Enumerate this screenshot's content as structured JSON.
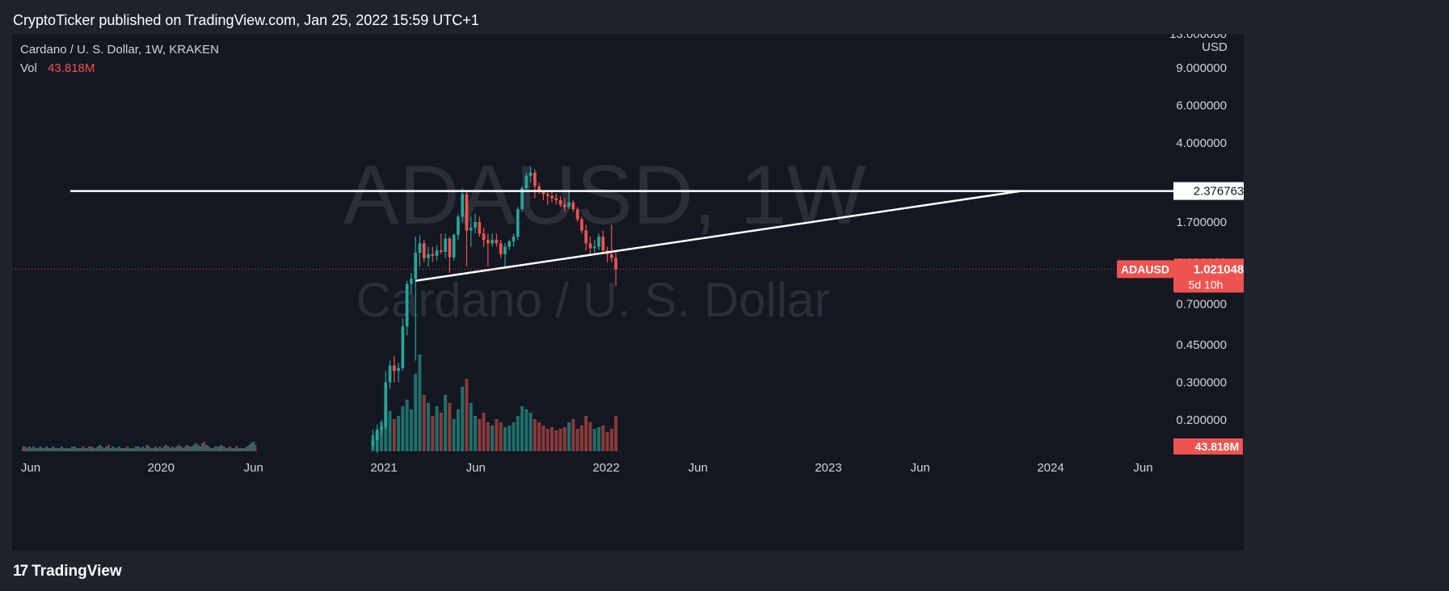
{
  "header": {
    "publisher": "CryptoTicker published on TradingView.com, Jan 25, 2022 15:59 UTC+1"
  },
  "footer": {
    "logo_text": "TradingView",
    "logo_mark": "17"
  },
  "legend": {
    "title": "Cardano / U. S. Dollar, 1W, KRAKEN",
    "vol_label": "Vol",
    "vol_value": "43.818M"
  },
  "watermark": {
    "symbol": "ADAUSD, 1W",
    "name": "Cardano / U. S. Dollar"
  },
  "colors": {
    "up": "#26a69a",
    "down": "#ef5350",
    "vol_up": "#1f6f6a",
    "vol_down": "#8a3a3a",
    "background": "#131722",
    "line": "#ffffff"
  },
  "chart_data": {
    "type": "candlestick",
    "symbol": "ADAUSD",
    "interval": "1W",
    "exchange": "KRAKEN",
    "y_scale": "log",
    "currency": "USD",
    "y_ticks": [
      {
        "value": 13.0,
        "label": "13.000000"
      },
      {
        "value": 9.0,
        "label": "9.000000"
      },
      {
        "value": 6.0,
        "label": "6.000000"
      },
      {
        "value": 4.0,
        "label": "4.000000"
      },
      {
        "value": 1.7,
        "label": "1.700000"
      },
      {
        "value": 1.1,
        "label": "1.100000"
      },
      {
        "value": 0.7,
        "label": "0.700000"
      },
      {
        "value": 0.45,
        "label": "0.450000"
      },
      {
        "value": 0.3,
        "label": "0.300000"
      },
      {
        "value": 0.2,
        "label": "0.200000"
      }
    ],
    "x_ticks": [
      {
        "date": "2019-06-01",
        "label": "Jun"
      },
      {
        "date": "2020-01-01",
        "label": "2020"
      },
      {
        "date": "2020-06-01",
        "label": "Jun"
      },
      {
        "date": "2021-01-01",
        "label": "2021"
      },
      {
        "date": "2021-06-01",
        "label": "Jun"
      },
      {
        "date": "2022-01-01",
        "label": "2022"
      },
      {
        "date": "2022-06-01",
        "label": "Jun"
      },
      {
        "date": "2023-01-01",
        "label": "2023"
      },
      {
        "date": "2023-06-01",
        "label": "Jun"
      },
      {
        "date": "2024-01-01",
        "label": "2024"
      },
      {
        "date": "2024-06-01",
        "label": "Jun"
      }
    ],
    "last_price": {
      "symbol_label": "ADAUSD",
      "value": 1.021048,
      "label": "1.021048",
      "countdown": "5d 10h"
    },
    "volume_label": "43.818M",
    "horizontal_line": {
      "value": 2.376763,
      "label": "2.376763",
      "start": "2019-08-05",
      "end": "2024-06-30"
    },
    "trend_line": {
      "start": {
        "date": "2021-02-22",
        "value": 0.9
      },
      "end": {
        "date": "2023-11-13",
        "value": 2.376
      }
    },
    "candles": [
      {
        "date": "2020-12-14",
        "o": 0.15,
        "h": 0.18,
        "l": 0.145,
        "c": 0.16
      },
      {
        "date": "2020-12-21",
        "o": 0.16,
        "h": 0.19,
        "l": 0.14,
        "c": 0.18
      },
      {
        "date": "2020-12-28",
        "o": 0.18,
        "h": 0.2,
        "l": 0.17,
        "c": 0.185
      },
      {
        "date": "2021-01-04",
        "o": 0.185,
        "h": 0.34,
        "l": 0.18,
        "c": 0.3
      },
      {
        "date": "2021-01-11",
        "o": 0.3,
        "h": 0.38,
        "l": 0.28,
        "c": 0.36
      },
      {
        "date": "2021-01-18",
        "o": 0.36,
        "h": 0.4,
        "l": 0.3,
        "c": 0.34
      },
      {
        "date": "2021-01-25",
        "o": 0.34,
        "h": 0.37,
        "l": 0.3,
        "c": 0.35
      },
      {
        "date": "2021-02-01",
        "o": 0.35,
        "h": 0.6,
        "l": 0.34,
        "c": 0.55
      },
      {
        "date": "2021-02-08",
        "o": 0.55,
        "h": 0.9,
        "l": 0.5,
        "c": 0.87
      },
      {
        "date": "2021-02-15",
        "o": 0.87,
        "h": 0.98,
        "l": 0.78,
        "c": 0.92
      },
      {
        "date": "2021-02-22",
        "o": 0.92,
        "h": 1.45,
        "l": 0.38,
        "c": 1.22
      },
      {
        "date": "2021-03-01",
        "o": 1.22,
        "h": 1.48,
        "l": 1.05,
        "c": 1.35
      },
      {
        "date": "2021-03-08",
        "o": 1.35,
        "h": 1.4,
        "l": 1.1,
        "c": 1.15
      },
      {
        "date": "2021-03-15",
        "o": 1.15,
        "h": 1.3,
        "l": 1.05,
        "c": 1.2
      },
      {
        "date": "2021-03-22",
        "o": 1.2,
        "h": 1.3,
        "l": 1.1,
        "c": 1.18
      },
      {
        "date": "2021-03-29",
        "o": 1.18,
        "h": 1.32,
        "l": 1.12,
        "c": 1.25
      },
      {
        "date": "2021-04-05",
        "o": 1.25,
        "h": 1.5,
        "l": 1.2,
        "c": 1.23
      },
      {
        "date": "2021-04-12",
        "o": 1.23,
        "h": 1.5,
        "l": 1.15,
        "c": 1.42
      },
      {
        "date": "2021-04-19",
        "o": 1.42,
        "h": 1.45,
        "l": 0.98,
        "c": 1.16
      },
      {
        "date": "2021-04-26",
        "o": 1.16,
        "h": 1.5,
        "l": 1.12,
        "c": 1.48
      },
      {
        "date": "2021-05-03",
        "o": 1.48,
        "h": 1.85,
        "l": 1.4,
        "c": 1.8
      },
      {
        "date": "2021-05-10",
        "o": 1.8,
        "h": 2.45,
        "l": 1.7,
        "c": 2.3
      },
      {
        "date": "2021-05-17",
        "o": 2.3,
        "h": 2.4,
        "l": 1.05,
        "c": 1.55
      },
      {
        "date": "2021-05-24",
        "o": 1.55,
        "h": 1.8,
        "l": 1.3,
        "c": 1.6
      },
      {
        "date": "2021-05-31",
        "o": 1.6,
        "h": 1.85,
        "l": 1.5,
        "c": 1.7
      },
      {
        "date": "2021-06-07",
        "o": 1.7,
        "h": 1.8,
        "l": 1.45,
        "c": 1.5
      },
      {
        "date": "2021-06-14",
        "o": 1.5,
        "h": 1.6,
        "l": 1.3,
        "c": 1.4
      },
      {
        "date": "2021-06-21",
        "o": 1.4,
        "h": 1.5,
        "l": 1.05,
        "c": 1.35
      },
      {
        "date": "2021-06-28",
        "o": 1.35,
        "h": 1.5,
        "l": 1.3,
        "c": 1.4
      },
      {
        "date": "2021-07-05",
        "o": 1.4,
        "h": 1.5,
        "l": 1.3,
        "c": 1.35
      },
      {
        "date": "2021-07-12",
        "o": 1.35,
        "h": 1.4,
        "l": 1.15,
        "c": 1.2
      },
      {
        "date": "2021-07-19",
        "o": 1.2,
        "h": 1.35,
        "l": 1.05,
        "c": 1.3
      },
      {
        "date": "2021-07-26",
        "o": 1.3,
        "h": 1.4,
        "l": 1.25,
        "c": 1.38
      },
      {
        "date": "2021-08-02",
        "o": 1.38,
        "h": 1.5,
        "l": 1.3,
        "c": 1.45
      },
      {
        "date": "2021-08-09",
        "o": 1.45,
        "h": 2.0,
        "l": 1.4,
        "c": 1.95
      },
      {
        "date": "2021-08-16",
        "o": 1.95,
        "h": 2.5,
        "l": 1.9,
        "c": 2.45
      },
      {
        "date": "2021-08-23",
        "o": 2.45,
        "h": 2.9,
        "l": 2.4,
        "c": 2.8
      },
      {
        "date": "2021-08-30",
        "o": 2.8,
        "h": 3.1,
        "l": 2.6,
        "c": 2.9
      },
      {
        "date": "2021-09-06",
        "o": 2.9,
        "h": 3.0,
        "l": 2.2,
        "c": 2.5
      },
      {
        "date": "2021-09-13",
        "o": 2.5,
        "h": 2.6,
        "l": 2.3,
        "c": 2.35
      },
      {
        "date": "2021-09-20",
        "o": 2.35,
        "h": 2.4,
        "l": 2.15,
        "c": 2.3
      },
      {
        "date": "2021-09-27",
        "o": 2.3,
        "h": 2.35,
        "l": 2.05,
        "c": 2.25
      },
      {
        "date": "2021-10-04",
        "o": 2.25,
        "h": 2.4,
        "l": 2.1,
        "c": 2.2
      },
      {
        "date": "2021-10-11",
        "o": 2.2,
        "h": 2.3,
        "l": 2.05,
        "c": 2.15
      },
      {
        "date": "2021-10-18",
        "o": 2.15,
        "h": 2.25,
        "l": 2.0,
        "c": 2.05
      },
      {
        "date": "2021-10-25",
        "o": 2.05,
        "h": 2.2,
        "l": 1.9,
        "c": 2.0
      },
      {
        "date": "2021-11-01",
        "o": 2.0,
        "h": 2.4,
        "l": 1.95,
        "c": 2.1
      },
      {
        "date": "2021-11-08",
        "o": 2.1,
        "h": 2.15,
        "l": 1.9,
        "c": 1.95
      },
      {
        "date": "2021-11-15",
        "o": 1.95,
        "h": 2.0,
        "l": 1.7,
        "c": 1.75
      },
      {
        "date": "2021-11-22",
        "o": 1.75,
        "h": 1.8,
        "l": 1.5,
        "c": 1.55
      },
      {
        "date": "2021-11-29",
        "o": 1.55,
        "h": 1.65,
        "l": 1.25,
        "c": 1.35
      },
      {
        "date": "2021-12-06",
        "o": 1.35,
        "h": 1.45,
        "l": 1.2,
        "c": 1.28
      },
      {
        "date": "2021-12-13",
        "o": 1.28,
        "h": 1.4,
        "l": 1.2,
        "c": 1.3
      },
      {
        "date": "2021-12-20",
        "o": 1.3,
        "h": 1.5,
        "l": 1.25,
        "c": 1.45
      },
      {
        "date": "2021-12-27",
        "o": 1.45,
        "h": 1.55,
        "l": 1.2,
        "c": 1.25
      },
      {
        "date": "2022-01-03",
        "o": 1.25,
        "h": 1.3,
        "l": 1.1,
        "c": 1.2
      },
      {
        "date": "2022-01-10",
        "o": 1.2,
        "h": 1.65,
        "l": 1.1,
        "c": 1.15
      },
      {
        "date": "2022-01-17",
        "o": 1.15,
        "h": 1.25,
        "l": 0.85,
        "c": 1.02
      }
    ],
    "volume_pre_2021": [
      3,
      3,
      2,
      3,
      2,
      3,
      2,
      2,
      3,
      2,
      2,
      3,
      2,
      2,
      3,
      2,
      2,
      2,
      3,
      2,
      2,
      2,
      2,
      3,
      3,
      2,
      2,
      2,
      3,
      2,
      2,
      3,
      3,
      2,
      2,
      3,
      4,
      3,
      2,
      3,
      4,
      2,
      3,
      2,
      2,
      3,
      2,
      2,
      2,
      3,
      2,
      2,
      2,
      3,
      3,
      2,
      3,
      2,
      4,
      3,
      2,
      2,
      3,
      2,
      3,
      2,
      3,
      4,
      3,
      2,
      3,
      2,
      3,
      4,
      3,
      2,
      3,
      4,
      3,
      3,
      4,
      5,
      4,
      3,
      5,
      6,
      4,
      3,
      2,
      2,
      3,
      3,
      3,
      4,
      3,
      2,
      2,
      3,
      2,
      2,
      3,
      2,
      2,
      2,
      2,
      3,
      4,
      5,
      6,
      4
    ],
    "volume_2021": [
      10,
      12,
      18,
      30,
      25,
      20,
      22,
      28,
      32,
      26,
      48,
      60,
      35,
      30,
      22,
      28,
      24,
      35,
      30,
      20,
      26,
      40,
      45,
      30,
      22,
      20,
      24,
      18,
      16,
      20,
      18,
      15,
      16,
      18,
      22,
      28,
      26,
      24,
      20,
      18,
      16,
      14,
      15,
      13,
      14,
      15,
      18,
      20,
      14,
      16,
      22,
      18,
      14,
      15,
      16,
      12,
      14,
      22,
      18
    ]
  }
}
